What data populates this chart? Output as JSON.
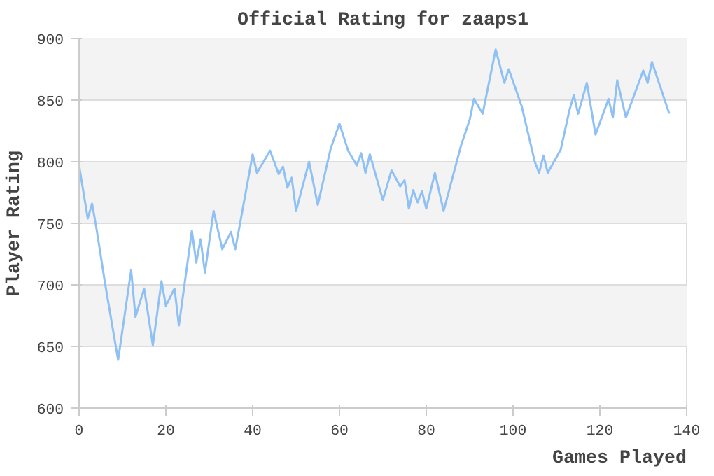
{
  "chart_data": {
    "type": "line",
    "title": "Official Rating for zaaps1",
    "xlabel": "Games Played",
    "ylabel": "Player Rating",
    "xlim": [
      0,
      140
    ],
    "xticks": [
      0,
      20,
      40,
      60,
      80,
      100,
      120,
      140
    ],
    "ylim": [
      600,
      900
    ],
    "yticks": [
      600,
      650,
      700,
      750,
      800,
      850,
      900
    ],
    "grid": "y",
    "series": [
      {
        "color": "#8fc1f5",
        "x": [
          0,
          2,
          3,
          4,
          6,
          9,
          12,
          13,
          15,
          17,
          19,
          20,
          22,
          23,
          26,
          27,
          28,
          29,
          31,
          33,
          35,
          36,
          37,
          40,
          41,
          44,
          46,
          47,
          48,
          49,
          50,
          53,
          55,
          58,
          60,
          62,
          64,
          65,
          66,
          67,
          70,
          72,
          74,
          75,
          76,
          77,
          78,
          79,
          80,
          82,
          84,
          88,
          90,
          91,
          93,
          96,
          98,
          99,
          102,
          105,
          106,
          107,
          108,
          111,
          113,
          114,
          115,
          117,
          119,
          122,
          123,
          124,
          126,
          130,
          131,
          132,
          136
        ],
        "values": [
          797,
          754,
          766,
          746,
          701,
          639,
          712,
          674,
          697,
          651,
          703,
          683,
          697,
          667,
          744,
          718,
          737,
          710,
          760,
          729,
          743,
          729,
          748,
          806,
          791,
          809,
          790,
          796,
          779,
          787,
          760,
          800,
          765,
          811,
          831,
          809,
          797,
          807,
          791,
          806,
          769,
          793,
          780,
          785,
          762,
          777,
          767,
          776,
          762,
          791,
          760,
          813,
          834,
          851,
          839,
          891,
          864,
          875,
          845,
          800,
          791,
          805,
          791,
          810,
          842,
          854,
          839,
          864,
          822,
          851,
          836,
          866,
          836,
          874,
          864,
          881,
          839
        ]
      }
    ]
  }
}
